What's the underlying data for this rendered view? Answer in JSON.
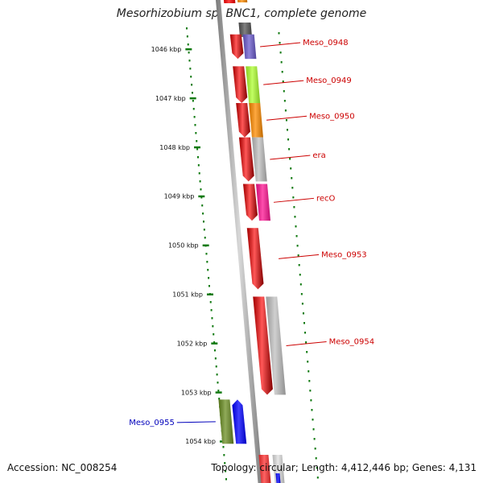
{
  "title": "Mesorhizobium sp. BNC1, complete genome",
  "footer": {
    "accession": "Accession: NC_008254",
    "summary": "Topology: circular; Length: 4,412,446 bp; Genes: 4,131"
  },
  "colors": {
    "label_forward": "#cc0000",
    "label_reverse": "#0000bb",
    "tick": "#117a11",
    "backbone": "#8c8c8c",
    "cds": "#ff0000"
  },
  "scale": {
    "unit": "kbp",
    "ticks": [
      {
        "kbp": 1046,
        "label": "1046 kbp"
      },
      {
        "kbp": 1047,
        "label": "1047 kbp"
      },
      {
        "kbp": 1048,
        "label": "1048 kbp"
      },
      {
        "kbp": 1049,
        "label": "1049 kbp"
      },
      {
        "kbp": 1050,
        "label": "1050 kbp"
      },
      {
        "kbp": 1051,
        "label": "1051 kbp"
      },
      {
        "kbp": 1052,
        "label": "1052 kbp"
      },
      {
        "kbp": 1053,
        "label": "1053 kbp"
      },
      {
        "kbp": 1054,
        "label": "1054 kbp"
      }
    ]
  },
  "genes": [
    {
      "label": "Meso_0948",
      "strand": "+",
      "start_kbp": 1045.7,
      "end_kbp": 1046.2,
      "cog_color": "#6a5acd"
    },
    {
      "label": "Meso_0949",
      "strand": "+",
      "start_kbp": 1046.35,
      "end_kbp": 1047.1,
      "cog_color": "#adff2f"
    },
    {
      "label": "Meso_0950",
      "strand": "+",
      "start_kbp": 1047.1,
      "end_kbp": 1047.8,
      "cog_color": "#ff8c00"
    },
    {
      "label": "era",
      "strand": "+",
      "start_kbp": 1047.8,
      "end_kbp": 1048.7,
      "cog_color": "#c0c0c0"
    },
    {
      "label": "recO",
      "strand": "+",
      "start_kbp": 1048.75,
      "end_kbp": 1049.5,
      "cog_color": "#ff1493"
    },
    {
      "label": "Meso_0953",
      "strand": "+",
      "start_kbp": 1049.65,
      "end_kbp": 1050.9,
      "cog_color": ""
    },
    {
      "label": "Meso_0954",
      "strand": "+",
      "start_kbp": 1051.05,
      "end_kbp": 1053.05,
      "cog_color": "#c0c0c0"
    },
    {
      "label": "Meso_0955",
      "strand": "-",
      "start_kbp": 1053.15,
      "end_kbp": 1054.05,
      "cog_color": "#6b8e23",
      "cds_color": "#0000ff"
    }
  ]
}
